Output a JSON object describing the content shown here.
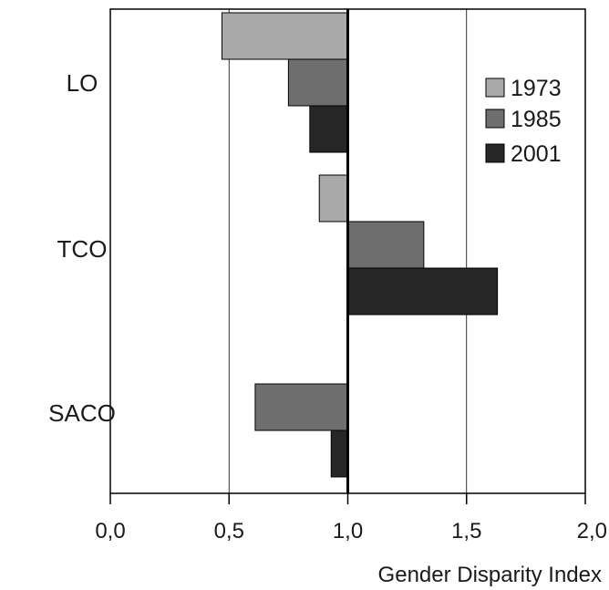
{
  "chart_data": {
    "type": "bar",
    "orientation": "horizontal",
    "categories": [
      "LO",
      "TCO",
      "SACO"
    ],
    "series": [
      {
        "name": "1973",
        "values": [
          0.47,
          0.88,
          null
        ],
        "color": "#a9a9a9"
      },
      {
        "name": "1985",
        "values": [
          0.75,
          1.32,
          0.61
        ],
        "color": "#6e6e6e"
      },
      {
        "name": "2001",
        "values": [
          0.84,
          1.63,
          0.93
        ],
        "color": "#262626"
      }
    ],
    "xlabel": "Gender Disparity Index",
    "xlim": [
      0,
      2
    ],
    "reference_line": 1.0,
    "x_ticks": [
      {
        "value": 0,
        "label": "0,0"
      },
      {
        "value": 0.5,
        "label": "0,5"
      },
      {
        "value": 1,
        "label": "1,0"
      },
      {
        "value": 1.5,
        "label": "1,5"
      },
      {
        "value": 2,
        "label": "2,0"
      }
    ],
    "grid": true,
    "legend": "top-right"
  }
}
